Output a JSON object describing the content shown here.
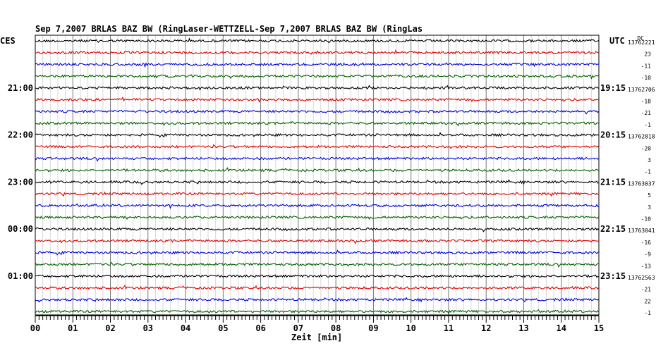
{
  "chart_data": {
    "type": "line",
    "title": "Sep 7,2007   BRLAS BAZ BW (RingLaser-WETTZELL-Sep 7,2007   BRLAS BAZ BW (RingLas",
    "xlabel": "Zeit [min]",
    "left_timezone": "CES",
    "right_timezone": "UTC",
    "corner_label": "DC",
    "xlim": [
      0,
      15
    ],
    "x_ticks": [
      "00",
      "01",
      "02",
      "03",
      "04",
      "05",
      "06",
      "07",
      "08",
      "09",
      "10",
      "11",
      "12",
      "13",
      "14",
      "15"
    ],
    "trace_colors": [
      "#000000",
      "#e00000",
      "#0000e0",
      "#006000"
    ],
    "left_hour_labels": [
      "21:00",
      "22:00",
      "23:00",
      "00:00",
      "01:00"
    ],
    "right_hour_labels": [
      "19:15",
      "20:15",
      "21:15",
      "22:15",
      "23:15"
    ],
    "rows": [
      {
        "color": "#000000",
        "offset": "13762221"
      },
      {
        "color": "#e00000",
        "offset": "23"
      },
      {
        "color": "#0000e0",
        "offset": "-11"
      },
      {
        "color": "#006000",
        "offset": "-10"
      },
      {
        "color": "#000000",
        "offset": "13762706",
        "left_time": "21:00",
        "right_time": "19:15"
      },
      {
        "color": "#e00000",
        "offset": "-18"
      },
      {
        "color": "#0000e0",
        "offset": "-21"
      },
      {
        "color": "#006000",
        "offset": "-1"
      },
      {
        "color": "#000000",
        "offset": "13762818",
        "left_time": "22:00",
        "right_time": "20:15"
      },
      {
        "color": "#e00000",
        "offset": "-20"
      },
      {
        "color": "#0000e0",
        "offset": "3"
      },
      {
        "color": "#006000",
        "offset": "-1"
      },
      {
        "color": "#000000",
        "offset": "13763037",
        "left_time": "23:00",
        "right_time": "21:15"
      },
      {
        "color": "#e00000",
        "offset": "5"
      },
      {
        "color": "#0000e0",
        "offset": "3"
      },
      {
        "color": "#006000",
        "offset": "-10"
      },
      {
        "color": "#000000",
        "offset": "13763041",
        "left_time": "00:00",
        "right_time": "22:15"
      },
      {
        "color": "#e00000",
        "offset": "-16"
      },
      {
        "color": "#0000e0",
        "offset": "-9"
      },
      {
        "color": "#006000",
        "offset": "-13"
      },
      {
        "color": "#000000",
        "offset": "13762563",
        "left_time": "01:00",
        "right_time": "23:15"
      },
      {
        "color": "#e00000",
        "offset": "-21"
      },
      {
        "color": "#0000e0",
        "offset": "22"
      },
      {
        "color": "#006000",
        "offset": "-1"
      }
    ]
  }
}
